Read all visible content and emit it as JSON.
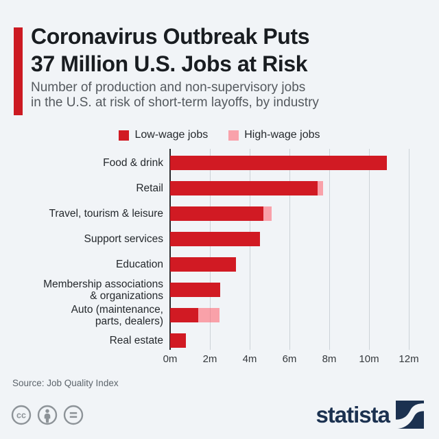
{
  "header": {
    "accent_color": "#cc1a22",
    "title_line1": "Coronavirus Outbreak Puts",
    "title_line2": "37 Million U.S. Jobs at Risk",
    "subtitle_line1": "Number of production and non-supervisory jobs",
    "subtitle_line2": "in the U.S. at risk of short-term layoffs, by industry"
  },
  "legend": {
    "items": [
      {
        "label": "Low-wage jobs",
        "color": "#d11a23"
      },
      {
        "label": "High-wage jobs",
        "color": "#f9a2ab"
      }
    ]
  },
  "chart_data": {
    "type": "bar",
    "orientation": "horizontal",
    "stacked": true,
    "title": "Coronavirus Outbreak Puts 37 Million U.S. Jobs at Risk",
    "subtitle": "Number of production and non-supervisory jobs in the U.S. at risk of short-term layoffs, by industry",
    "categories": [
      "Food & drink",
      "Retail",
      "Travel, tourism & leisure",
      "Support services",
      "Education",
      "Membership associations\n& organizations",
      "Auto (maintenance,\nparts, dealers)",
      "Real estate"
    ],
    "series": [
      {
        "name": "Low-wage jobs",
        "color": "#d11a23",
        "values": [
          10.9,
          7.4,
          4.7,
          4.5,
          3.3,
          2.5,
          1.4,
          0.8
        ]
      },
      {
        "name": "High-wage jobs",
        "color": "rgba(255,92,106,0.55)",
        "values": [
          0,
          0.3,
          0.4,
          0,
          0,
          0,
          1.1,
          0
        ]
      }
    ],
    "xlim": [
      0,
      12
    ],
    "xticks": [
      "0m",
      "2m",
      "4m",
      "6m",
      "8m",
      "10m",
      "12m"
    ],
    "grid": true,
    "legend_position": "top"
  },
  "footer": {
    "source": "Source: Job Quality Index",
    "license_icons": [
      "cc-icon",
      "attribution-icon",
      "equal-icon"
    ],
    "brand": "statista"
  }
}
